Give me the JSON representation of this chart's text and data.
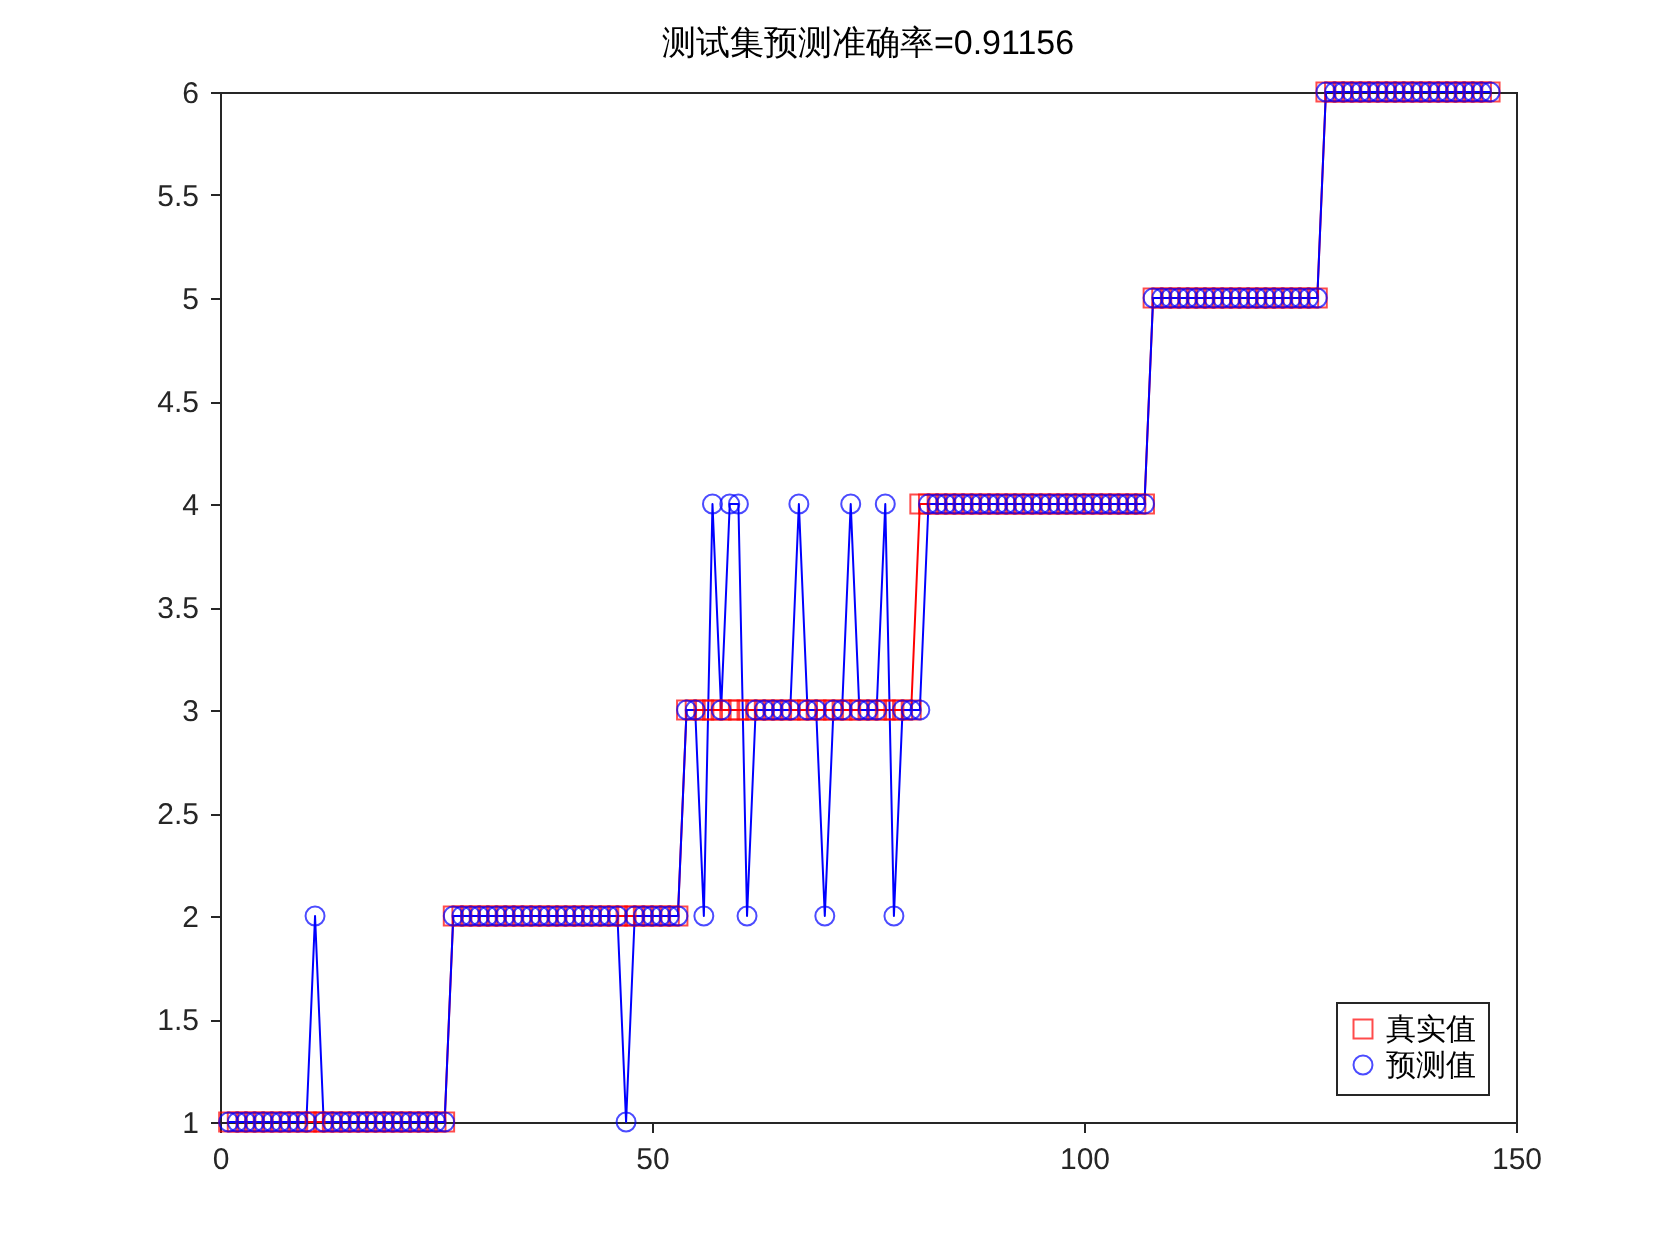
{
  "chart_data": {
    "type": "line",
    "title": "测试集预测准确率=0.91156",
    "x": [
      1,
      2,
      3,
      4,
      5,
      6,
      7,
      8,
      9,
      10,
      11,
      12,
      13,
      14,
      15,
      16,
      17,
      18,
      19,
      20,
      21,
      22,
      23,
      24,
      25,
      26,
      27,
      28,
      29,
      30,
      31,
      32,
      33,
      34,
      35,
      36,
      37,
      38,
      39,
      40,
      41,
      42,
      43,
      44,
      45,
      46,
      47,
      48,
      49,
      50,
      51,
      52,
      53,
      54,
      55,
      56,
      57,
      58,
      59,
      60,
      61,
      62,
      63,
      64,
      65,
      66,
      67,
      68,
      69,
      70,
      71,
      72,
      73,
      74,
      75,
      76,
      77,
      78,
      79,
      80,
      81,
      82,
      83,
      84,
      85,
      86,
      87,
      88,
      89,
      90,
      91,
      92,
      93,
      94,
      95,
      96,
      97,
      98,
      99,
      100,
      101,
      102,
      103,
      104,
      105,
      106,
      107,
      108,
      109,
      110,
      111,
      112,
      113,
      114,
      115,
      116,
      117,
      118,
      119,
      120,
      121,
      122,
      123,
      124,
      125,
      126,
      127,
      128,
      129,
      130,
      131,
      132,
      133,
      134,
      135,
      136,
      137,
      138,
      139,
      140,
      141,
      142,
      143,
      144,
      145,
      146,
      147
    ],
    "series": [
      {
        "name": "真实值",
        "color": "#ff0000",
        "marker": "square",
        "values": [
          1,
          1,
          1,
          1,
          1,
          1,
          1,
          1,
          1,
          1,
          1,
          1,
          1,
          1,
          1,
          1,
          1,
          1,
          1,
          1,
          1,
          1,
          1,
          1,
          1,
          1,
          2,
          2,
          2,
          2,
          2,
          2,
          2,
          2,
          2,
          2,
          2,
          2,
          2,
          2,
          2,
          2,
          2,
          2,
          2,
          2,
          2,
          2,
          2,
          2,
          2,
          2,
          2,
          3,
          3,
          3,
          3,
          3,
          3,
          3,
          3,
          3,
          3,
          3,
          3,
          3,
          3,
          3,
          3,
          3,
          3,
          3,
          3,
          3,
          3,
          3,
          3,
          3,
          3,
          3,
          4,
          4,
          4,
          4,
          4,
          4,
          4,
          4,
          4,
          4,
          4,
          4,
          4,
          4,
          4,
          4,
          4,
          4,
          4,
          4,
          4,
          4,
          4,
          4,
          4,
          4,
          4,
          5,
          5,
          5,
          5,
          5,
          5,
          5,
          5,
          5,
          5,
          5,
          5,
          5,
          5,
          5,
          5,
          5,
          5,
          5,
          5,
          6,
          6,
          6,
          6,
          6,
          6,
          6,
          6,
          6,
          6,
          6,
          6,
          6,
          6,
          6,
          6,
          6,
          6,
          6,
          6
        ]
      },
      {
        "name": "预测值",
        "color": "#0000ff",
        "marker": "circle",
        "values": [
          1,
          1,
          1,
          1,
          1,
          1,
          1,
          1,
          1,
          1,
          2,
          1,
          1,
          1,
          1,
          1,
          1,
          1,
          1,
          1,
          1,
          1,
          1,
          1,
          1,
          1,
          2,
          2,
          2,
          2,
          2,
          2,
          2,
          2,
          2,
          2,
          2,
          2,
          2,
          2,
          2,
          2,
          2,
          2,
          2,
          2,
          1,
          2,
          2,
          2,
          2,
          2,
          2,
          3,
          3,
          2,
          4,
          3,
          4,
          4,
          2,
          3,
          3,
          3,
          3,
          3,
          4,
          3,
          3,
          2,
          3,
          3,
          4,
          3,
          3,
          3,
          4,
          2,
          3,
          3,
          3,
          4,
          4,
          4,
          4,
          4,
          4,
          4,
          4,
          4,
          4,
          4,
          4,
          4,
          4,
          4,
          4,
          4,
          4,
          4,
          4,
          4,
          4,
          4,
          4,
          4,
          4,
          5,
          5,
          5,
          5,
          5,
          5,
          5,
          5,
          5,
          5,
          5,
          5,
          5,
          5,
          5,
          5,
          5,
          5,
          5,
          5,
          6,
          6,
          6,
          6,
          6,
          6,
          6,
          6,
          6,
          6,
          6,
          6,
          6,
          6,
          6,
          6,
          6,
          6,
          6,
          6
        ]
      }
    ],
    "xlim": [
      0,
      150
    ],
    "xticks": [
      0,
      50,
      100,
      150
    ],
    "ylim": [
      1,
      6
    ],
    "yticks": [
      1,
      1.5,
      2,
      2.5,
      3,
      3.5,
      4,
      4.5,
      5,
      5.5,
      6
    ],
    "legend": "bottom right",
    "line_style": "solid"
  }
}
